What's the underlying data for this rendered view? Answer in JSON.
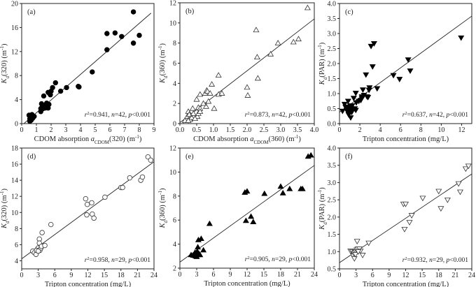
{
  "chart_data": [
    {
      "type": "scatter",
      "panel": "(a)",
      "marker": "circle-filled",
      "xlabel": {
        "text": "CDOM absorption ",
        "var": "a",
        "sub": "CDOM",
        "rest": "(320) (m",
        "sup": "-1",
        "end": ")"
      },
      "ylabel": {
        "var": "K",
        "sub": "d",
        "rest": "(320) (m",
        "sup": "-1",
        "end": ")"
      },
      "xlim": [
        0,
        9
      ],
      "ylim": [
        0,
        20
      ],
      "xticks": [
        "0",
        "1",
        "2",
        "3",
        "4",
        "5",
        "6",
        "7",
        "8",
        "9"
      ],
      "yticks": [
        "0",
        "4",
        "8",
        "12",
        "16",
        "20"
      ],
      "annotation": {
        "r2": "0.941",
        "n": "42",
        "p": "0.001"
      },
      "fit_line": [
        [
          0.15,
          0
        ],
        [
          8.8,
          18.4
        ]
      ],
      "points": [
        [
          0.5,
          1.4
        ],
        [
          0.55,
          0.8
        ],
        [
          0.6,
          1.2
        ],
        [
          0.6,
          0.5
        ],
        [
          0.65,
          1.0
        ],
        [
          0.7,
          1.3
        ],
        [
          0.75,
          0.9
        ],
        [
          0.8,
          1.1
        ],
        [
          0.55,
          0.4
        ],
        [
          0.65,
          0.6
        ],
        [
          0.85,
          1.2
        ],
        [
          0.7,
          1.5
        ],
        [
          1.3,
          2.0
        ],
        [
          1.35,
          3.3
        ],
        [
          1.4,
          2.8
        ],
        [
          1.45,
          2.5
        ],
        [
          1.5,
          4.6
        ],
        [
          1.6,
          2.6
        ],
        [
          1.7,
          3.4
        ],
        [
          1.75,
          3.0
        ],
        [
          1.8,
          2.6
        ],
        [
          1.8,
          5.2
        ],
        [
          1.9,
          5.0
        ],
        [
          1.95,
          4.8
        ],
        [
          2.0,
          5.4
        ],
        [
          2.1,
          6.0
        ],
        [
          2.3,
          6.8
        ],
        [
          2.65,
          5.4
        ],
        [
          3.05,
          6.0
        ],
        [
          3.85,
          6.2
        ],
        [
          3.9,
          6.1
        ],
        [
          4.8,
          8.6
        ],
        [
          5.8,
          15.0
        ],
        [
          5.8,
          12.3
        ],
        [
          6.35,
          15.1
        ],
        [
          6.8,
          14.5
        ],
        [
          7.6,
          18.6
        ],
        [
          7.6,
          13.4
        ],
        [
          8.0,
          14.7
        ],
        [
          1.3,
          2.5
        ],
        [
          1.55,
          3.0
        ],
        [
          1.85,
          3.2
        ]
      ]
    },
    {
      "type": "scatter",
      "panel": "(b)",
      "marker": "triangle-up-open",
      "xlabel": {
        "text": "CDOM absorption ",
        "var": "a",
        "sub": "CDOM",
        "rest": "(360) (m",
        "sup": "-1",
        "end": ")"
      },
      "ylabel": {
        "var": "K",
        "sub": "d",
        "rest": "(360) (m",
        "sup": "-1",
        "end": ")"
      },
      "xlim": [
        0,
        4
      ],
      "ylim": [
        0,
        12
      ],
      "xticks": [
        "0.0",
        "0.5",
        "1.0",
        "1.5",
        "2.0",
        "2.5",
        "3.0",
        "3.5",
        "4.0"
      ],
      "yticks": [
        "0",
        "2",
        "4",
        "6",
        "8",
        "10",
        "12"
      ],
      "annotation": {
        "r2": "0.873",
        "n": "42",
        "p": "0.001"
      },
      "fit_line": [
        [
          0,
          0.1
        ],
        [
          4,
          10.4
        ]
      ],
      "points": [
        [
          0.18,
          0.2
        ],
        [
          0.2,
          0.5
        ],
        [
          0.22,
          0.7
        ],
        [
          0.25,
          1.2
        ],
        [
          0.3,
          0.6
        ],
        [
          0.3,
          0.4
        ],
        [
          0.35,
          0.6
        ],
        [
          0.38,
          1.5
        ],
        [
          0.5,
          2.4
        ],
        [
          0.52,
          0.7
        ],
        [
          0.55,
          1.0
        ],
        [
          0.55,
          1.6
        ],
        [
          0.6,
          1.5
        ],
        [
          0.6,
          2.9
        ],
        [
          0.75,
          3.0
        ],
        [
          0.78,
          1.7
        ],
        [
          0.8,
          3.3
        ],
        [
          0.82,
          3.2
        ],
        [
          0.85,
          2.2
        ],
        [
          0.9,
          3.0
        ],
        [
          0.95,
          3.9
        ],
        [
          1.02,
          1.5
        ],
        [
          1.15,
          4.8
        ],
        [
          1.15,
          2.9
        ],
        [
          1.25,
          3.0
        ],
        [
          2.0,
          3.6
        ],
        [
          2.02,
          2.8
        ],
        [
          2.27,
          9.3
        ],
        [
          2.3,
          6.6
        ],
        [
          2.32,
          4.5
        ],
        [
          2.7,
          6.9
        ],
        [
          2.92,
          8.0
        ],
        [
          3.38,
          8.1
        ],
        [
          3.53,
          8.4
        ],
        [
          3.8,
          11.5
        ],
        [
          0.15,
          0.3
        ],
        [
          0.28,
          0.9
        ],
        [
          0.45,
          0.5
        ],
        [
          0.7,
          2.0
        ],
        [
          0.6,
          1.2
        ],
        [
          0.25,
          0.3
        ],
        [
          0.4,
          1.0
        ]
      ]
    },
    {
      "type": "scatter",
      "panel": "(c)",
      "marker": "triangle-down-filled",
      "xlabel": {
        "text": "Tripton concentration (mg/L)"
      },
      "ylabel": {
        "var": "K",
        "sub": "d",
        "rest": "(PAR) (m",
        "sup": "-1",
        "end": ")"
      },
      "xlim": [
        0,
        13
      ],
      "ylim": [
        0,
        4
      ],
      "xticks": [
        "0",
        "2",
        "4",
        "6",
        "8",
        "10",
        "12"
      ],
      "yticks": [
        "0.0",
        "0.5",
        "1.0",
        "1.5",
        "2.0",
        "2.5",
        "3.0",
        "3.5",
        "4.0"
      ],
      "annotation": {
        "r2": "0.637",
        "n": "42",
        "p": "0.001"
      },
      "fit_line": [
        [
          0,
          0.38
        ],
        [
          13,
          3.58
        ]
      ],
      "points": [
        [
          0.3,
          0.42
        ],
        [
          0.5,
          0.65
        ],
        [
          0.6,
          0.55
        ],
        [
          0.75,
          0.5
        ],
        [
          0.85,
          0.75
        ],
        [
          0.9,
          0.3
        ],
        [
          0.95,
          0.4
        ],
        [
          1.0,
          0.45
        ],
        [
          1.05,
          0.6
        ],
        [
          1.1,
          0.2
        ],
        [
          1.15,
          0.5
        ],
        [
          1.2,
          0.38
        ],
        [
          1.3,
          0.45
        ],
        [
          1.4,
          0.85
        ],
        [
          1.6,
          0.45
        ],
        [
          1.6,
          1.02
        ],
        [
          1.65,
          0.7
        ],
        [
          2.1,
          0.78
        ],
        [
          2.2,
          0.9
        ],
        [
          2.2,
          0.85
        ],
        [
          2.3,
          1.13
        ],
        [
          2.6,
          1.63
        ],
        [
          2.7,
          0.9
        ],
        [
          2.8,
          0.88
        ],
        [
          2.9,
          1.12
        ],
        [
          2.95,
          1.2
        ],
        [
          3.1,
          2.58
        ],
        [
          3.25,
          1.9
        ],
        [
          3.4,
          2.67
        ],
        [
          3.7,
          1.17
        ],
        [
          5.3,
          1.61
        ],
        [
          5.9,
          1.48
        ],
        [
          6.75,
          2.13
        ],
        [
          6.95,
          1.76
        ],
        [
          11.95,
          2.86
        ],
        [
          0.8,
          0.55
        ],
        [
          1.0,
          0.35
        ],
        [
          1.25,
          0.6
        ],
        [
          2.4,
          0.95
        ],
        [
          1.9,
          0.75
        ],
        [
          0.7,
          0.45
        ],
        [
          1.5,
          0.5
        ]
      ]
    },
    {
      "type": "scatter",
      "panel": "(d)",
      "marker": "circle-open",
      "xlabel": {
        "text": "Tripton concentration (mg/L)"
      },
      "ylabel": {
        "var": "K",
        "sub": "d",
        "rest": "(320) (m",
        "sup": "-1",
        "end": ")"
      },
      "xlim": [
        0,
        24
      ],
      "ylim": [
        3,
        18
      ],
      "xticks": [
        "0",
        "3",
        "6",
        "9",
        "12",
        "15",
        "18",
        "21",
        "24"
      ],
      "yticks": [
        "4",
        "6",
        "8",
        "10",
        "12",
        "14",
        "16",
        "18"
      ],
      "annotation": {
        "r2": "0.958",
        "n": "29",
        "p": "0.001"
      },
      "fit_line": [
        [
          0,
          4.25
        ],
        [
          24,
          16.3
        ]
      ],
      "points": [
        [
          2.0,
          5.2
        ],
        [
          2.3,
          5.0
        ],
        [
          2.6,
          4.8
        ],
        [
          2.8,
          5.4
        ],
        [
          3.0,
          5.6
        ],
        [
          3.2,
          6.7
        ],
        [
          3.2,
          6.2
        ],
        [
          3.3,
          5.3
        ],
        [
          3.5,
          5.6
        ],
        [
          3.7,
          7.5
        ],
        [
          3.6,
          5.8
        ],
        [
          4.2,
          5.9
        ],
        [
          5.3,
          8.5
        ],
        [
          11.6,
          11.7
        ],
        [
          11.8,
          9.7
        ],
        [
          11.9,
          11.0
        ],
        [
          12.7,
          11.2
        ],
        [
          12.8,
          9.8
        ],
        [
          13.1,
          9.3
        ],
        [
          15.1,
          11.9
        ],
        [
          18.0,
          13.1
        ],
        [
          18.3,
          13.1
        ],
        [
          19.6,
          14.3
        ],
        [
          21.6,
          14.0
        ],
        [
          21.9,
          14.4
        ],
        [
          22.9,
          16.9
        ],
        [
          23.4,
          16.5
        ],
        [
          2.7,
          5.3
        ],
        [
          3.0,
          5.2
        ]
      ]
    },
    {
      "type": "scatter",
      "panel": "(e)",
      "marker": "triangle-up-filled",
      "xlabel": {
        "text": "Tripton concentration (mg/L)"
      },
      "ylabel": {
        "var": "K",
        "sub": "d",
        "rest": "(360) (m",
        "sup": "-1",
        "end": ")"
      },
      "xlim": [
        0,
        24
      ],
      "ylim": [
        2,
        12
      ],
      "xticks": [
        "0",
        "3",
        "6",
        "9",
        "12",
        "15",
        "18",
        "21",
        "24"
      ],
      "yticks": [
        "2",
        "4",
        "6",
        "8",
        "10",
        "12"
      ],
      "annotation": {
        "r2": "0.905",
        "n": "29",
        "p": "0.001"
      },
      "fit_line": [
        [
          0,
          2.5
        ],
        [
          24,
          10.55
        ]
      ],
      "points": [
        [
          2.0,
          3.1
        ],
        [
          2.4,
          3.05
        ],
        [
          2.7,
          3.3
        ],
        [
          2.8,
          3.0
        ],
        [
          3.0,
          2.95
        ],
        [
          3.1,
          3.4
        ],
        [
          3.2,
          3.75
        ],
        [
          3.3,
          4.35
        ],
        [
          3.4,
          3.2
        ],
        [
          3.6,
          3.1
        ],
        [
          3.8,
          4.45
        ],
        [
          4.2,
          3.5
        ],
        [
          5.3,
          5.7
        ],
        [
          11.6,
          8.3
        ],
        [
          11.8,
          5.95
        ],
        [
          12.0,
          8.4
        ],
        [
          12.7,
          6.3
        ],
        [
          13.1,
          5.85
        ],
        [
          15.1,
          8.2
        ],
        [
          18.0,
          8.8
        ],
        [
          18.4,
          8.25
        ],
        [
          19.6,
          8.6
        ],
        [
          21.6,
          8.6
        ],
        [
          21.9,
          8.6
        ],
        [
          22.9,
          11.3
        ],
        [
          23.4,
          11.4
        ],
        [
          2.9,
          3.1
        ],
        [
          3.2,
          3.1
        ],
        [
          2.6,
          3.2
        ]
      ]
    },
    {
      "type": "scatter",
      "panel": "(f)",
      "marker": "triangle-down-open",
      "xlabel": {
        "text": "Tripton concentration (mg/L)"
      },
      "ylabel": {
        "var": "K",
        "sub": "d",
        "rest": "(PAR) (m",
        "sup": "-1",
        "end": ")"
      },
      "xlim": [
        0,
        24
      ],
      "ylim": [
        0.5,
        4.0
      ],
      "xticks": [
        "0",
        "3",
        "6",
        "9",
        "12",
        "15",
        "18",
        "21",
        "24"
      ],
      "yticks": [
        "0.5",
        "1.0",
        "1.5",
        "2.0",
        "2.5",
        "3.0",
        "3.5",
        "4.0"
      ],
      "annotation": {
        "r2": "0.932",
        "n": "29",
        "p": "0.001"
      },
      "fit_line": [
        [
          0,
          0.68
        ],
        [
          24,
          3.25
        ]
      ],
      "points": [
        [
          2.0,
          1.02
        ],
        [
          2.3,
          1.0
        ],
        [
          2.5,
          0.88
        ],
        [
          2.6,
          0.95
        ],
        [
          2.7,
          0.8
        ],
        [
          2.8,
          0.98
        ],
        [
          3.0,
          1.0
        ],
        [
          3.1,
          1.05
        ],
        [
          3.2,
          1.3
        ],
        [
          3.3,
          1.08
        ],
        [
          3.6,
          1.08
        ],
        [
          3.8,
          1.02
        ],
        [
          4.2,
          0.9
        ],
        [
          5.3,
          1.25
        ],
        [
          11.6,
          2.38
        ],
        [
          11.8,
          1.65
        ],
        [
          12.0,
          2.38
        ],
        [
          12.7,
          1.85
        ],
        [
          13.1,
          2.05
        ],
        [
          15.1,
          2.55
        ],
        [
          18.0,
          2.75
        ],
        [
          18.4,
          2.25
        ],
        [
          19.6,
          2.5
        ],
        [
          21.6,
          2.97
        ],
        [
          21.9,
          2.73
        ],
        [
          22.9,
          3.4
        ],
        [
          23.4,
          3.48
        ],
        [
          2.9,
          0.92
        ],
        [
          3.4,
          1.0
        ]
      ]
    }
  ]
}
